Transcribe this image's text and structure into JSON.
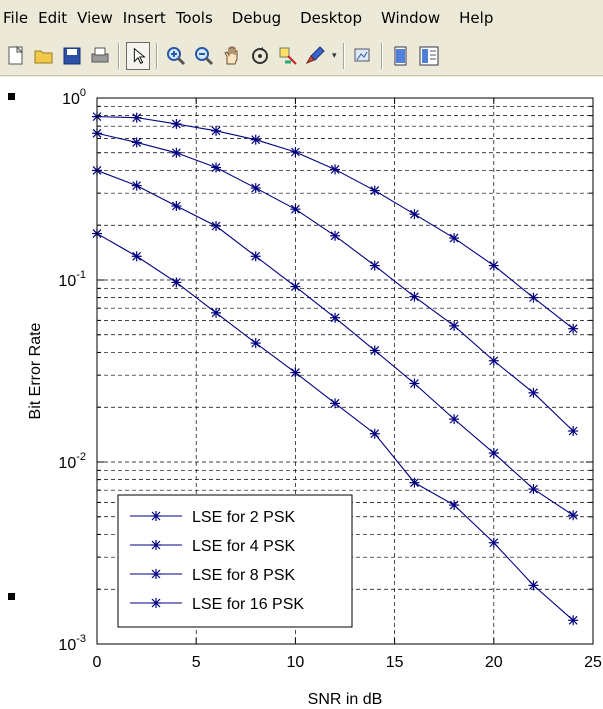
{
  "menu": [
    "File",
    "Edit",
    "View",
    "Insert",
    "Tools",
    "Debug",
    "Desktop",
    "Window",
    "Help"
  ],
  "toolbar": {
    "buttons": [
      {
        "name": "new-figure-icon"
      },
      {
        "name": "open-file-icon"
      },
      {
        "name": "save-icon"
      },
      {
        "name": "print-icon"
      },
      {
        "name": "select-arrow-icon",
        "pressed": true
      },
      {
        "name": "zoom-in-icon"
      },
      {
        "name": "zoom-out-icon"
      },
      {
        "name": "pan-hand-icon"
      },
      {
        "name": "rotate-3d-icon"
      },
      {
        "name": "data-cursor-icon"
      },
      {
        "name": "brush-icon"
      },
      {
        "name": "link-plot-icon"
      },
      {
        "name": "hide-plot-tools-icon"
      },
      {
        "name": "show-plot-tools-icon"
      }
    ]
  },
  "chart_data": {
    "type": "line",
    "title": "",
    "xlabel": "SNR in dB",
    "ylabel": "Bit Error Rate",
    "x": [
      0,
      2,
      4,
      6,
      8,
      10,
      12,
      14,
      16,
      18,
      20,
      22,
      24
    ],
    "xlim": [
      0,
      25
    ],
    "ylim": [
      0.001,
      1
    ],
    "yscale": "log",
    "xticks": [
      "0",
      "5",
      "10",
      "15",
      "20",
      "25"
    ],
    "yticks": [
      {
        "base": "10",
        "exp": "-3"
      },
      {
        "base": "10",
        "exp": "-2"
      },
      {
        "base": "10",
        "exp": "-1"
      },
      {
        "base": "10",
        "exp": "0"
      }
    ],
    "grid": true,
    "legend_position": "bottom-left",
    "marker": "asterisk",
    "line_color": "#000080",
    "series": [
      {
        "name": "LSE for 2 PSK",
        "values": [
          0.18,
          0.135,
          0.097,
          0.066,
          0.045,
          0.031,
          0.021,
          0.0143,
          0.0077,
          0.0058,
          0.0036,
          0.0021,
          0.00135
        ]
      },
      {
        "name": "LSE for 4 PSK",
        "values": [
          0.4,
          0.33,
          0.255,
          0.198,
          0.135,
          0.092,
          0.062,
          0.041,
          0.027,
          0.0172,
          0.0112,
          0.0071,
          0.0051
        ]
      },
      {
        "name": "LSE for 8 PSK",
        "values": [
          0.64,
          0.57,
          0.5,
          0.415,
          0.32,
          0.245,
          0.175,
          0.12,
          0.081,
          0.056,
          0.036,
          0.024,
          0.0148
        ]
      },
      {
        "name": "LSE for 16 PSK",
        "values": [
          0.79,
          0.78,
          0.72,
          0.66,
          0.59,
          0.505,
          0.405,
          0.31,
          0.23,
          0.17,
          0.12,
          0.08,
          0.054
        ]
      }
    ]
  }
}
